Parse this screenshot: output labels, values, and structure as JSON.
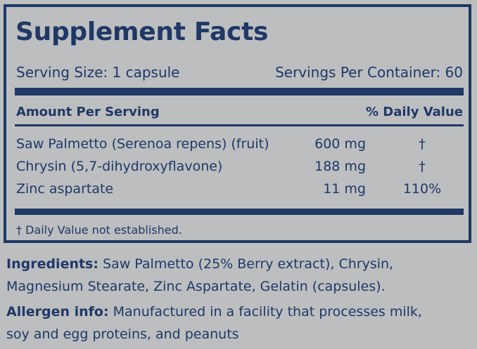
{
  "label": {
    "title": "Supplement Facts",
    "serving_size": "Serving Size: 1 capsule",
    "servings_per_container": "Servings Per Container:  60",
    "header_amount": "Amount Per Serving",
    "header_daily_value": "% Daily Value",
    "rows": [
      {
        "name": "Saw Palmetto (Serenoa repens) (fruit)",
        "amount": "600 mg",
        "daily_value": "†"
      },
      {
        "name": "Chrysin (5,7-dihydroxyflavone)",
        "amount": "188 mg",
        "daily_value": "†"
      },
      {
        "name": "Zinc aspartate",
        "amount": "11 mg",
        "daily_value": "110%"
      }
    ],
    "footnote": "† Daily Value not established."
  },
  "ingredients": {
    "label": "Ingredients:",
    "line1": " Saw Palmetto (25% Berry extract), Chrysin,",
    "line2": "Magnesium Stearate, Zinc Aspartate, Gelatin (capsules)."
  },
  "allergen": {
    "label": "Allergen info:",
    "line1": " Manufactured in a facility that processes milk,",
    "line2": "soy and egg proteins, and peanuts"
  },
  "colors": {
    "ink": "#1f3866",
    "background": "#bcbec0"
  }
}
